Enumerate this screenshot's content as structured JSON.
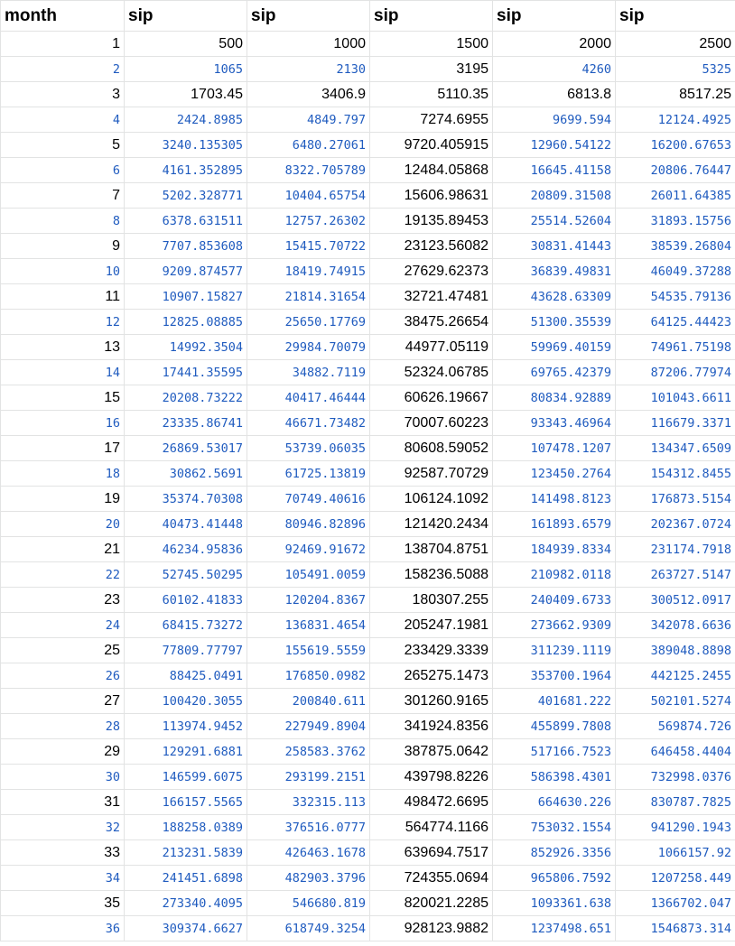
{
  "colors": {
    "black_text": "#000000",
    "blue_text": "#1f5bbf",
    "gridline": "#e2e3e3"
  },
  "headers": [
    "month",
    "sip",
    "sip",
    "sip",
    "sip",
    "sip"
  ],
  "rows": [
    [
      "1",
      "500",
      "1000",
      "1500",
      "2000",
      "2500"
    ],
    [
      "2",
      "1065",
      "2130",
      "3195",
      "4260",
      "5325"
    ],
    [
      "3",
      "1703.45",
      "3406.9",
      "5110.35",
      "6813.8",
      "8517.25"
    ],
    [
      "4",
      "2424.8985",
      "4849.797",
      "7274.6955",
      "9699.594",
      "12124.4925"
    ],
    [
      "5",
      "3240.135305",
      "6480.27061",
      "9720.405915",
      "12960.54122",
      "16200.67653"
    ],
    [
      "6",
      "4161.352895",
      "8322.705789",
      "12484.05868",
      "16645.41158",
      "20806.76447"
    ],
    [
      "7",
      "5202.328771",
      "10404.65754",
      "15606.98631",
      "20809.31508",
      "26011.64385"
    ],
    [
      "8",
      "6378.631511",
      "12757.26302",
      "19135.89453",
      "25514.52604",
      "31893.15756"
    ],
    [
      "9",
      "7707.853608",
      "15415.70722",
      "23123.56082",
      "30831.41443",
      "38539.26804"
    ],
    [
      "10",
      "9209.874577",
      "18419.74915",
      "27629.62373",
      "36839.49831",
      "46049.37288"
    ],
    [
      "11",
      "10907.15827",
      "21814.31654",
      "32721.47481",
      "43628.63309",
      "54535.79136"
    ],
    [
      "12",
      "12825.08885",
      "25650.17769",
      "38475.26654",
      "51300.35539",
      "64125.44423"
    ],
    [
      "13",
      "14992.3504",
      "29984.70079",
      "44977.05119",
      "59969.40159",
      "74961.75198"
    ],
    [
      "14",
      "17441.35595",
      "34882.7119",
      "52324.06785",
      "69765.42379",
      "87206.77974"
    ],
    [
      "15",
      "20208.73222",
      "40417.46444",
      "60626.19667",
      "80834.92889",
      "101043.6611"
    ],
    [
      "16",
      "23335.86741",
      "46671.73482",
      "70007.60223",
      "93343.46964",
      "116679.3371"
    ],
    [
      "17",
      "26869.53017",
      "53739.06035",
      "80608.59052",
      "107478.1207",
      "134347.6509"
    ],
    [
      "18",
      "30862.5691",
      "61725.13819",
      "92587.70729",
      "123450.2764",
      "154312.8455"
    ],
    [
      "19",
      "35374.70308",
      "70749.40616",
      "106124.1092",
      "141498.8123",
      "176873.5154"
    ],
    [
      "20",
      "40473.41448",
      "80946.82896",
      "121420.2434",
      "161893.6579",
      "202367.0724"
    ],
    [
      "21",
      "46234.95836",
      "92469.91672",
      "138704.8751",
      "184939.8334",
      "231174.7918"
    ],
    [
      "22",
      "52745.50295",
      "105491.0059",
      "158236.5088",
      "210982.0118",
      "263727.5147"
    ],
    [
      "23",
      "60102.41833",
      "120204.8367",
      "180307.255",
      "240409.6733",
      "300512.0917"
    ],
    [
      "24",
      "68415.73272",
      "136831.4654",
      "205247.1981",
      "273662.9309",
      "342078.6636"
    ],
    [
      "25",
      "77809.77797",
      "155619.5559",
      "233429.3339",
      "311239.1119",
      "389048.8898"
    ],
    [
      "26",
      "88425.0491",
      "176850.0982",
      "265275.1473",
      "353700.1964",
      "442125.2455"
    ],
    [
      "27",
      "100420.3055",
      "200840.611",
      "301260.9165",
      "401681.222",
      "502101.5274"
    ],
    [
      "28",
      "113974.9452",
      "227949.8904",
      "341924.8356",
      "455899.7808",
      "569874.726"
    ],
    [
      "29",
      "129291.6881",
      "258583.3762",
      "387875.0642",
      "517166.7523",
      "646458.4404"
    ],
    [
      "30",
      "146599.6075",
      "293199.2151",
      "439798.8226",
      "586398.4301",
      "732998.0376"
    ],
    [
      "31",
      "166157.5565",
      "332315.113",
      "498472.6695",
      "664630.226",
      "830787.7825"
    ],
    [
      "32",
      "188258.0389",
      "376516.0777",
      "564774.1166",
      "753032.1554",
      "941290.1943"
    ],
    [
      "33",
      "213231.5839",
      "426463.1678",
      "639694.7517",
      "852926.3356",
      "1066157.92"
    ],
    [
      "34",
      "241451.6898",
      "482903.3796",
      "724355.0694",
      "965806.7592",
      "1207258.449"
    ],
    [
      "35",
      "273340.4095",
      "546680.819",
      "820021.2285",
      "1093361.638",
      "1366702.047"
    ],
    [
      "36",
      "309374.6627",
      "618749.3254",
      "928123.9882",
      "1237498.651",
      "1546873.314"
    ]
  ]
}
